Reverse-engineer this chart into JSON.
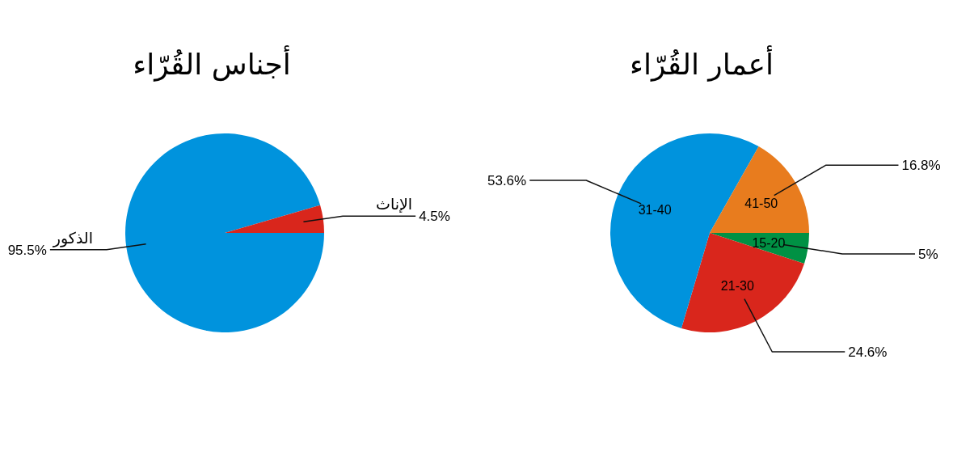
{
  "chart_data": [
    {
      "type": "pie",
      "title": "أجناس القُرّاء",
      "categories": [
        "الذكور",
        "الإناث"
      ],
      "values": [
        95.5,
        4.5
      ],
      "colors": [
        "#0093dd",
        "#d9261c"
      ],
      "value_labels": [
        "95.5%",
        "4.5%"
      ]
    },
    {
      "type": "pie",
      "title": "أعمار القُرّاء",
      "categories": [
        "15-20",
        "21-30",
        "31-40",
        "41-50"
      ],
      "values": [
        5,
        24.6,
        53.6,
        16.8
      ],
      "colors": [
        "#009144",
        "#d9261c",
        "#0093dd",
        "#e87c1e"
      ],
      "value_labels": [
        "5%",
        "24.6%",
        "53.6%",
        "16.8%"
      ]
    }
  ]
}
